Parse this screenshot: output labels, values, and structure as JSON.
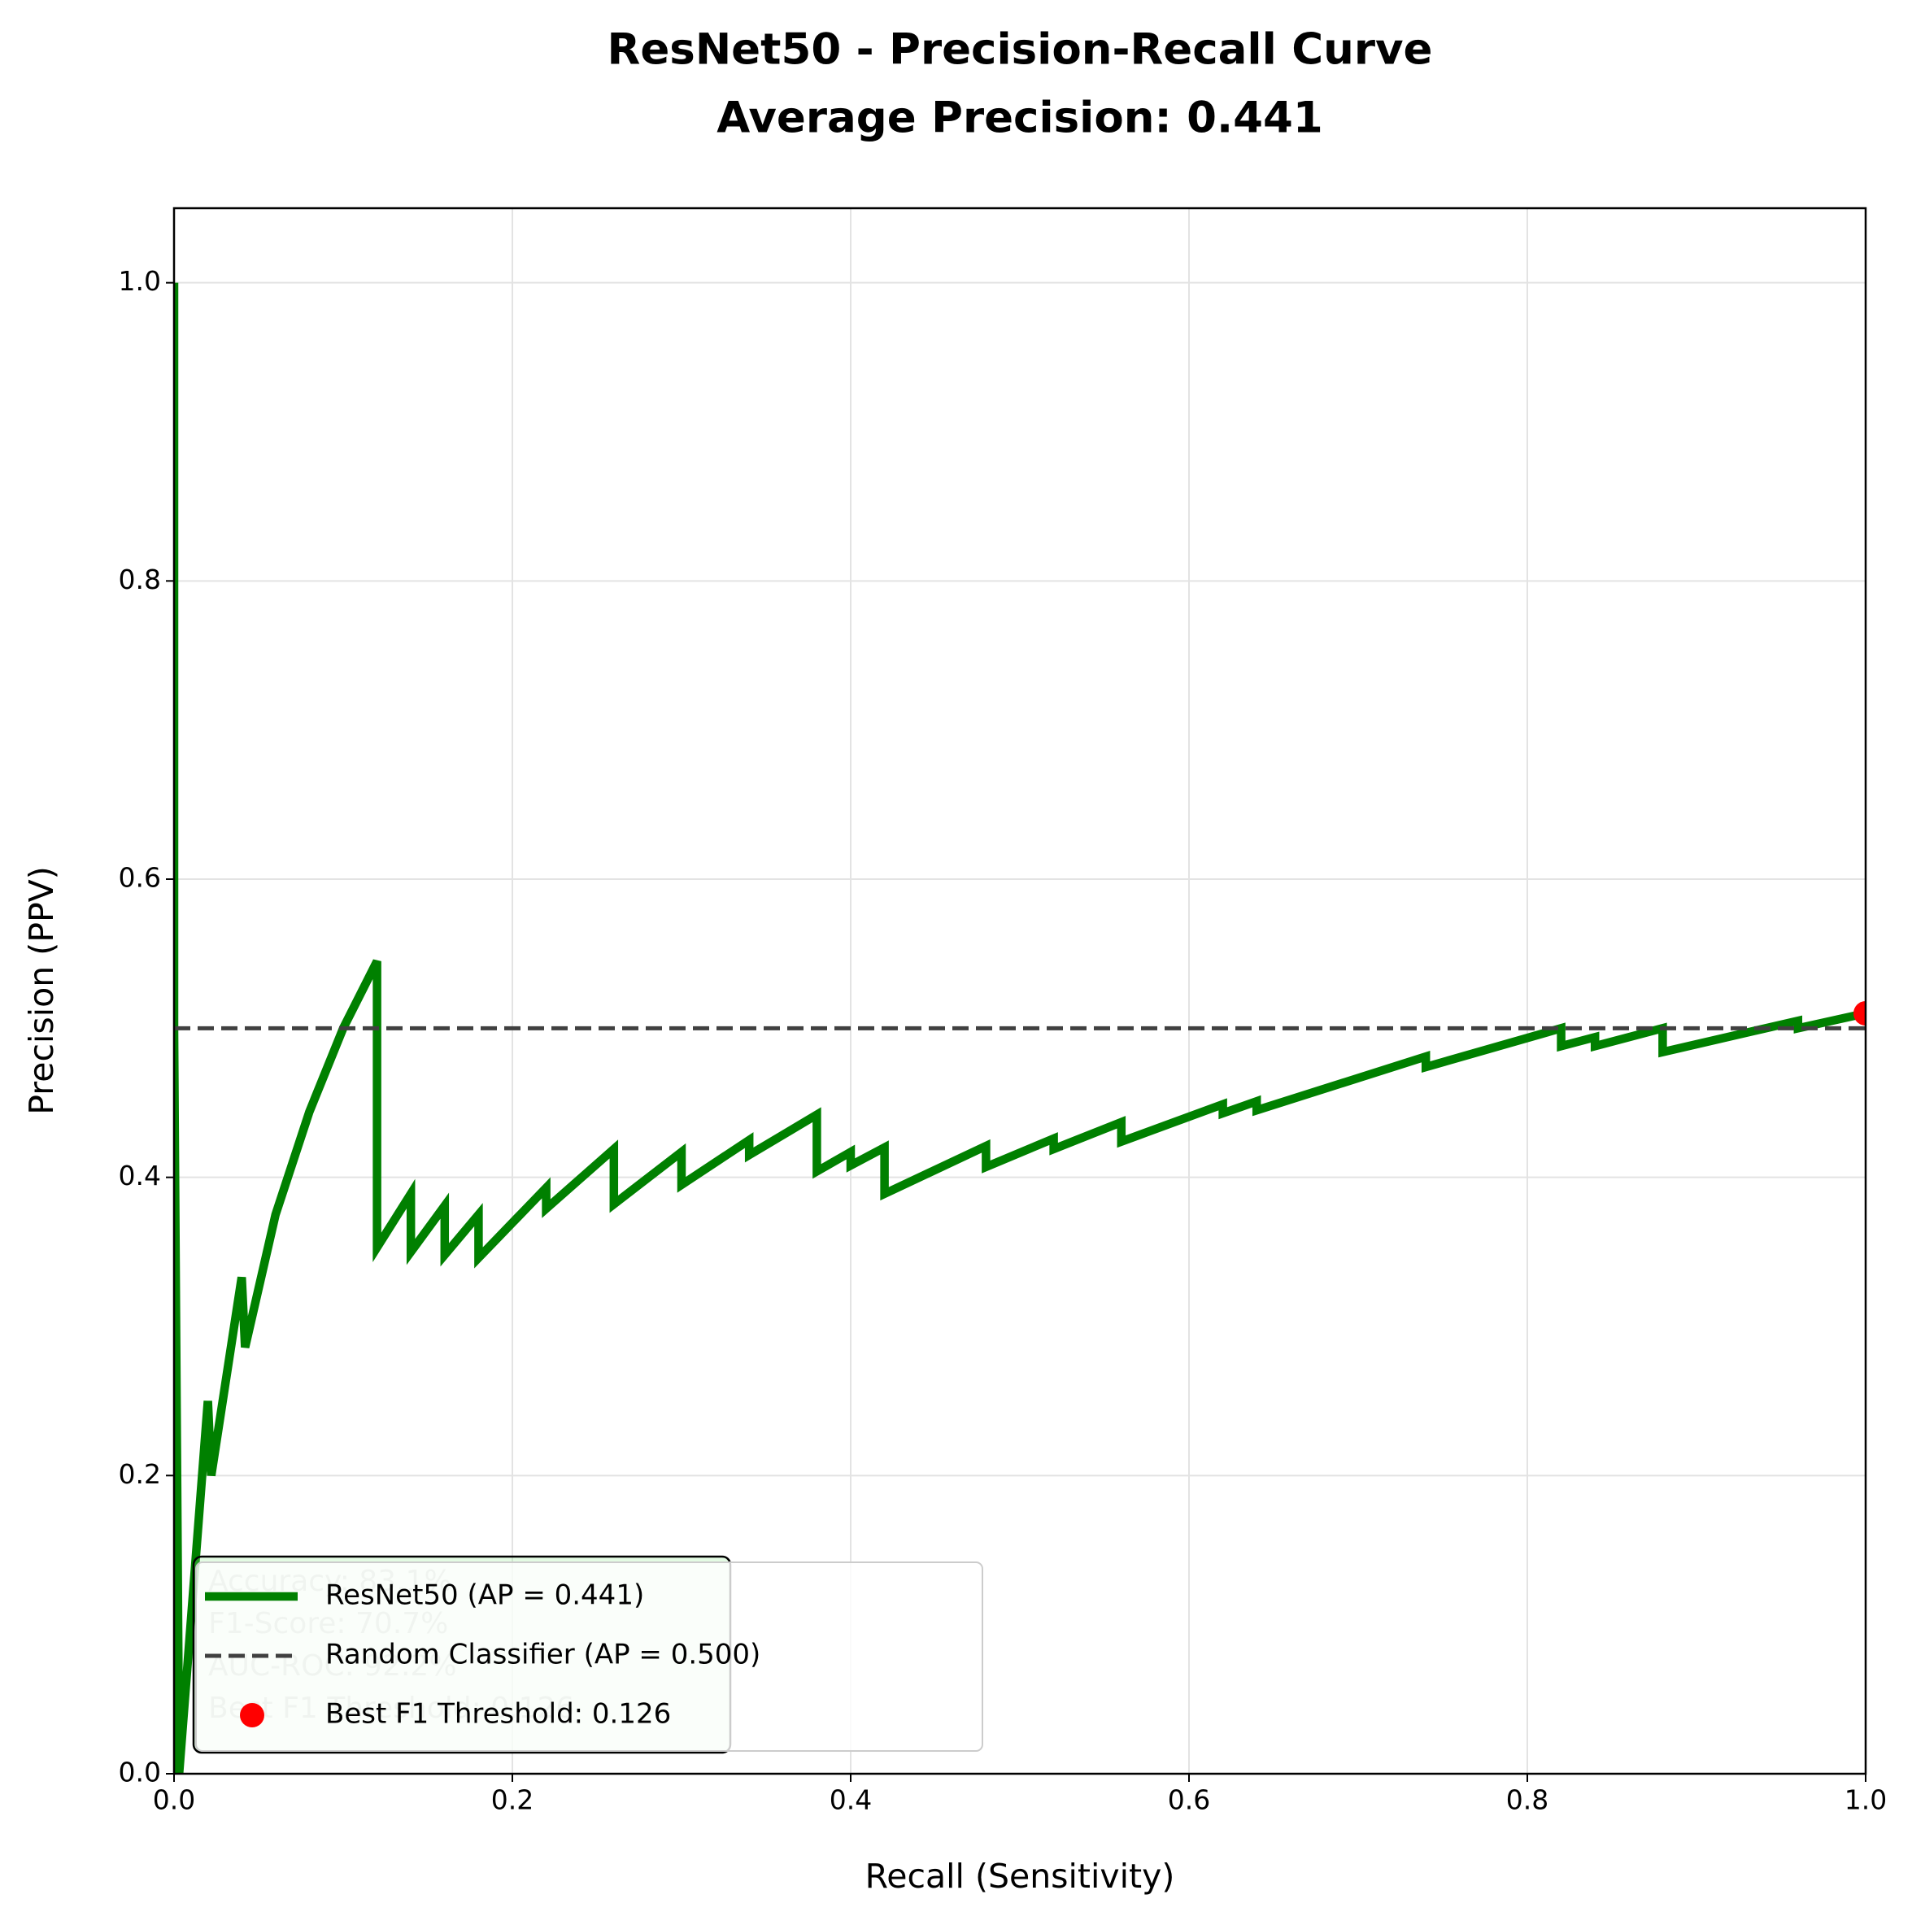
{
  "chart_data": {
    "type": "line",
    "title": [
      "ResNet50 - Precision-Recall Curve",
      "Average Precision: 0.441"
    ],
    "xlabel": "Recall (Sensitivity)",
    "ylabel": "Precision (PPV)",
    "xlim": [
      0,
      1
    ],
    "ylim": [
      0,
      1.05
    ],
    "xticks": [
      {
        "value": 0,
        "label": "0.0"
      },
      0.2,
      0.4,
      0.6,
      0.8,
      {
        "value": 1,
        "label": "1.0"
      }
    ],
    "yticks": [
      {
        "value": 0,
        "label": "0.0"
      },
      0.2,
      0.4,
      0.6,
      0.8,
      {
        "value": 1,
        "label": "1.0"
      }
    ],
    "grid": true,
    "legend": "lower left",
    "series": [
      {
        "name": "ResNet50 (AP = 0.441)",
        "color": "#008000",
        "style": "solid",
        "x": [
          0.0,
          0.0,
          0.003,
          0.02,
          0.022,
          0.04,
          0.042,
          0.06,
          0.08,
          0.1,
          0.12,
          0.12,
          0.14,
          0.14,
          0.16,
          0.16,
          0.18,
          0.18,
          0.22,
          0.22,
          0.26,
          0.26,
          0.3,
          0.3,
          0.34,
          0.34,
          0.38,
          0.38,
          0.4,
          0.4,
          0.42,
          0.42,
          0.48,
          0.48,
          0.52,
          0.52,
          0.56,
          0.56,
          0.62,
          0.62,
          0.64,
          0.64,
          0.74,
          0.74,
          0.82,
          0.82,
          0.84,
          0.84,
          0.88,
          0.88,
          0.96,
          0.96,
          1.0
        ],
        "values": [
          1.0,
          0.5,
          0.0,
          0.25,
          0.2,
          0.333,
          0.286,
          0.375,
          0.444,
          0.5,
          0.545,
          0.353,
          0.389,
          0.35,
          0.381,
          0.348,
          0.375,
          0.346,
          0.393,
          0.379,
          0.419,
          0.382,
          0.417,
          0.395,
          0.425,
          0.415,
          0.442,
          0.404,
          0.417,
          0.408,
          0.42,
          0.389,
          0.421,
          0.407,
          0.426,
          0.419,
          0.437,
          0.424,
          0.449,
          0.443,
          0.451,
          0.445,
          0.481,
          0.474,
          0.5,
          0.488,
          0.494,
          0.488,
          0.5,
          0.484,
          0.505,
          0.5,
          0.51
        ]
      },
      {
        "name": "Random Classifier (AP = 0.500)",
        "color": "#404040",
        "style": "dashed",
        "x": [
          0,
          1
        ],
        "values": [
          0.5,
          0.5
        ]
      },
      {
        "name": "Best F1 Threshold: 0.126",
        "color": "#ff0000",
        "style": "point",
        "x": [
          1.0
        ],
        "values": [
          0.51
        ]
      }
    ],
    "annotation": [
      "Accuracy: 83.1%",
      "F1-Score: 70.7%",
      "AUC-ROC: 92.2%",
      "Best F1 Threshold: 0.126"
    ]
  }
}
